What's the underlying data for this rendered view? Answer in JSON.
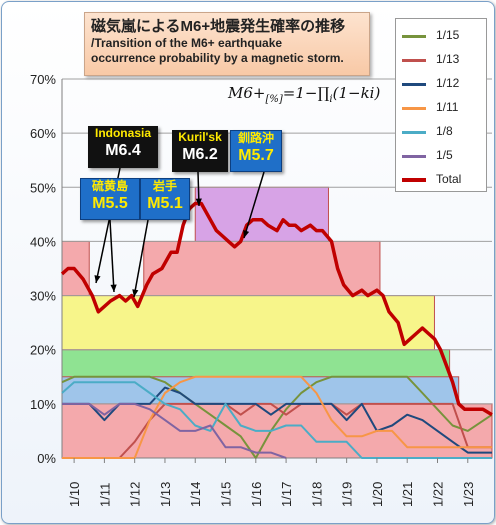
{
  "title": {
    "main": "磁気嵐によるM6+地震発生確率の推移",
    "sub_line1": "/Transition of the M6+ earthquake",
    "sub_line2": "occurrence probability by a magnetic storm."
  },
  "formula": {
    "lhs": "M6+",
    "lhs_sub": "[%]",
    "rhs": "=1−∏",
    "rhs_sub": "i",
    "tail": "(1−ki)"
  },
  "callouts": [
    {
      "place": "Indonasia",
      "mag": "M6.4",
      "style": "black"
    },
    {
      "place": "硫黄島",
      "mag": "M5.5",
      "style": "blue"
    },
    {
      "place": "岩手",
      "mag": "M5.1",
      "style": "blue"
    },
    {
      "place": "Kuril'sk",
      "mag": "M6.2",
      "style": "black"
    },
    {
      "place": "釧路沖",
      "mag": "M5.7",
      "style": "blue"
    }
  ],
  "chart_data": {
    "type": "line",
    "ylim": [
      0,
      70
    ],
    "y_ticks": [
      "0%",
      "10%",
      "20%",
      "30%",
      "40%",
      "50%",
      "60%",
      "70%"
    ],
    "x_ticks": [
      "1/10",
      "1/11",
      "1/12",
      "1/13",
      "1/14",
      "1/15",
      "1/16",
      "1/17",
      "1/18",
      "1/19",
      "1/20",
      "1/21",
      "1/22",
      "1/23"
    ],
    "x_range": [
      9.6,
      23.8
    ],
    "grid": "horizontal",
    "bands": [
      {
        "color": "#d7a3e6",
        "x0": 14.0,
        "x1": 18.4,
        "y": 50
      },
      {
        "color": "#f4a9ac",
        "x0": 9.6,
        "x1": 10.5,
        "y": 40
      },
      {
        "color": "#f4a9ac",
        "x0": 12.3,
        "x1": 20.1,
        "y": 40
      },
      {
        "color": "#f7f58a",
        "x0": 9.6,
        "x1": 21.9,
        "y": 30
      },
      {
        "color": "#8fe392",
        "x0": 9.6,
        "x1": 22.4,
        "y": 20
      },
      {
        "color": "#9fc5ea",
        "x0": 9.6,
        "x1": 22.7,
        "y": 15
      },
      {
        "color": "#f4a9ac",
        "x0": 9.6,
        "x1": 23.8,
        "y": 10
      }
    ],
    "series": [
      {
        "name": "1/15",
        "color": "#77933c",
        "width": 2,
        "x": [
          9.6,
          10,
          10.5,
          11,
          11.5,
          12,
          12.5,
          13,
          13.5,
          14,
          14.5,
          15,
          15.5,
          16,
          16.5,
          17,
          17.5,
          18,
          18.5,
          19,
          19.5,
          20,
          20.5,
          21,
          21.5,
          22,
          22.5,
          23,
          23.8
        ],
        "y": [
          14,
          15,
          15,
          15,
          15,
          15,
          15,
          14,
          12,
          10,
          8,
          6,
          4,
          0,
          5,
          9,
          12,
          14,
          15,
          15,
          15,
          15,
          15,
          15,
          12,
          9,
          6,
          5,
          8
        ]
      },
      {
        "name": "1/13",
        "color": "#c0504d",
        "width": 2,
        "x": [
          9.6,
          10,
          10.5,
          11,
          11.5,
          12,
          12.5,
          13,
          13.5,
          14,
          14.5,
          15,
          15.5,
          16,
          16.5,
          17,
          17.5,
          18,
          18.5,
          19,
          19.5,
          20,
          20.5,
          21,
          21.5,
          22,
          22.5,
          23,
          23.8
        ],
        "y": [
          0,
          0,
          0,
          0,
          0,
          3,
          7,
          10,
          10,
          10,
          10,
          10,
          8,
          10,
          10,
          8,
          10,
          10,
          10,
          8,
          10,
          10,
          10,
          10,
          10,
          10,
          10,
          2,
          2
        ]
      },
      {
        "name": "1/12",
        "color": "#1f497d",
        "width": 2,
        "x": [
          9.6,
          10,
          10.5,
          11,
          11.5,
          12,
          12.5,
          13,
          13.5,
          14,
          14.5,
          15,
          15.5,
          16,
          16.5,
          17,
          17.5,
          18,
          18.5,
          19,
          19.5,
          20,
          20.5,
          21,
          21.5,
          22,
          22.5,
          23,
          23.8
        ],
        "y": [
          10,
          10,
          10,
          7,
          10,
          10,
          10,
          13,
          12,
          10,
          10,
          10,
          10,
          10,
          8,
          10,
          10,
          10,
          10,
          7,
          10,
          5,
          6,
          8,
          7,
          5,
          3,
          1,
          1
        ]
      },
      {
        "name": "1/11",
        "color": "#f79646",
        "width": 2,
        "x": [
          9.6,
          10,
          10.5,
          11,
          11.5,
          12,
          12.5,
          13,
          13.5,
          14,
          14.5,
          15,
          15.5,
          16,
          16.5,
          17,
          17.5,
          18,
          18.5,
          19,
          19.5,
          20,
          20.5,
          21,
          21.5,
          22,
          22.5,
          23,
          23.8
        ],
        "y": [
          0,
          0,
          0,
          0,
          0,
          0,
          7,
          12,
          14,
          15,
          15,
          15,
          15,
          15,
          15,
          15,
          15,
          12,
          7,
          4,
          4,
          5,
          5,
          2,
          2,
          2,
          2,
          2,
          2
        ]
      },
      {
        "name": "1/8",
        "color": "#4bacc6",
        "width": 2,
        "x": [
          9.6,
          10,
          10.5,
          11,
          11.5,
          12,
          12.5,
          13,
          13.5,
          14,
          14.5,
          15,
          15.5,
          16,
          16.5,
          17,
          17.5,
          18,
          18.5,
          19,
          19.5,
          20,
          20.5,
          21,
          21.5,
          22,
          22.5,
          23,
          23.8
        ],
        "y": [
          12,
          14,
          14,
          14,
          14,
          14,
          12,
          10,
          9,
          6,
          5,
          10,
          6,
          5,
          5,
          6,
          6,
          3,
          3,
          3,
          0,
          0,
          0,
          0,
          0,
          0,
          0,
          0,
          0
        ]
      },
      {
        "name": "1/5",
        "color": "#8064a2",
        "width": 2,
        "x": [
          9.6,
          10,
          10.5,
          11,
          11.5,
          12,
          12.5,
          13,
          13.5,
          14,
          14.5,
          15,
          15.5,
          16,
          16.5,
          17
        ],
        "y": [
          10,
          10,
          10,
          8,
          10,
          10,
          9,
          7,
          5,
          5,
          6,
          2,
          2,
          1,
          1,
          0
        ]
      },
      {
        "name": "Total",
        "color": "#c00000",
        "width": 3.5,
        "x": [
          9.6,
          9.8,
          10,
          10.3,
          10.6,
          10.8,
          11,
          11.2,
          11.5,
          11.7,
          11.9,
          12.1,
          12.4,
          12.6,
          12.9,
          13.2,
          13.4,
          13.6,
          13.8,
          14.0,
          14.2,
          14.5,
          14.7,
          14.9,
          15.1,
          15.3,
          15.5,
          15.7,
          15.9,
          16.2,
          16.4,
          16.7,
          16.9,
          17.1,
          17.3,
          17.5,
          17.8,
          18.0,
          18.2,
          18.5,
          18.7,
          18.9,
          19.2,
          19.5,
          19.7,
          20.0,
          20.2,
          20.4,
          20.7,
          20.9,
          21.1,
          21.3,
          21.5,
          21.7,
          21.9,
          22.1,
          22.3,
          22.5,
          22.7,
          22.9,
          23.2,
          23.5,
          23.8
        ],
        "y": [
          34,
          35,
          35,
          33,
          30,
          27,
          28,
          29,
          30,
          29,
          30,
          28,
          32,
          34,
          35,
          38,
          38,
          43,
          46,
          47,
          47,
          44,
          42,
          41,
          40,
          39,
          40,
          43,
          44,
          44,
          43,
          42,
          44,
          43,
          43,
          42,
          43,
          42,
          42,
          40,
          35,
          32,
          30,
          31,
          30,
          31,
          30,
          27,
          25,
          21,
          22,
          23,
          24,
          23,
          22,
          20,
          17,
          14,
          10,
          9,
          9,
          9,
          8
        ]
      }
    ]
  }
}
